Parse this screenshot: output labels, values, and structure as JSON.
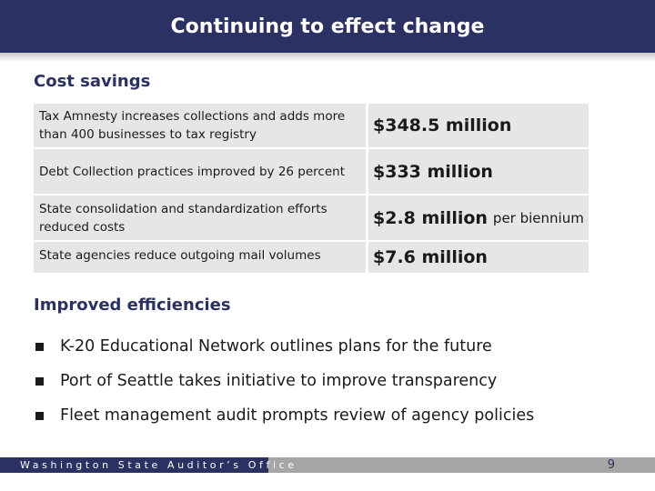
{
  "slide": {
    "title": "Continuing to effect change",
    "page_number": "9"
  },
  "cost_savings": {
    "heading": "Cost savings",
    "rows": [
      {
        "description": "Tax Amnesty increases collections and adds more than 400 businesses to tax registry",
        "amount": "$348.5 million",
        "suffix": ""
      },
      {
        "description": "Debt Collection practices improved by 26 percent",
        "amount": "$333 million",
        "suffix": ""
      },
      {
        "description": "State consolidation and standardization efforts reduced costs",
        "amount": "$2.8 million",
        "suffix": "per biennium"
      },
      {
        "description": "State agencies reduce outgoing mail volumes",
        "amount": "$7.6 million",
        "suffix": ""
      }
    ]
  },
  "efficiencies": {
    "heading": "Improved efficiencies",
    "items": [
      "K-20 Educational Network outlines plans for the future",
      "Port of Seattle takes initiative to improve transparency",
      "Fleet management audit prompts review of agency policies"
    ]
  },
  "footer": {
    "organization": "Washington State Auditor’s Office"
  },
  "colors": {
    "brand_navy": "#2b3163",
    "row_gray": "#e6e6e6",
    "footer_gray": "#a6a6a6"
  }
}
